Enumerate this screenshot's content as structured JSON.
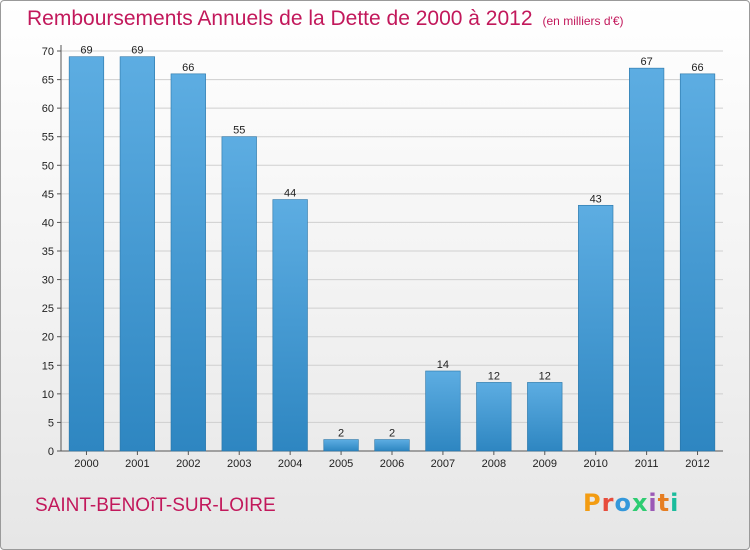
{
  "header": {
    "title": "Remboursements Annuels de la Dette de 2000 à 2012",
    "unit": "(en milliers d'€)"
  },
  "footer": {
    "commune": "SAINT-BENOîT-SUR-LOIRE",
    "brand": "Proxiti",
    "brand_colors": [
      "#f39c12",
      "#e74c3c",
      "#3498db",
      "#2ecc71",
      "#9b59b6",
      "#e67e22",
      "#1abc9c"
    ]
  },
  "colors": {
    "title": "#c2185b",
    "bar_light": "#5dade2",
    "bar_dark": "#2e86c1"
  },
  "chart_data": {
    "type": "bar",
    "categories": [
      "2000",
      "2001",
      "2002",
      "2003",
      "2004",
      "2005",
      "2006",
      "2007",
      "2008",
      "2009",
      "2010",
      "2011",
      "2012"
    ],
    "values": [
      69,
      69,
      66,
      55,
      44,
      2,
      2,
      14,
      12,
      12,
      43,
      67,
      66
    ],
    "ylim": [
      0,
      70
    ],
    "yticks": [
      0,
      5,
      10,
      15,
      20,
      25,
      30,
      35,
      40,
      45,
      50,
      55,
      60,
      65,
      70
    ],
    "grid": true
  }
}
